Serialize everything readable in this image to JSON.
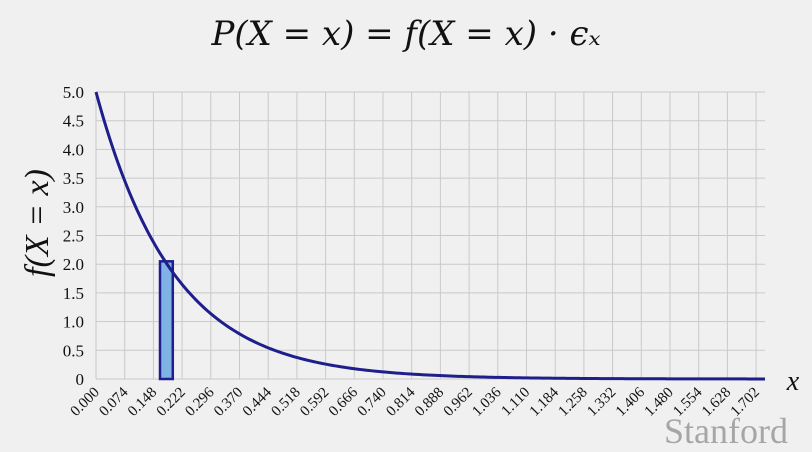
{
  "title": "P(X = x) = f(X = x) · ϵₓ",
  "watermark": "Stanford",
  "chart_data": {
    "type": "line",
    "title": "P(X = x) = f(X = x) · ϵₓ",
    "xlabel": "x",
    "ylabel": "f(X = x)",
    "xlim": [
      0,
      1.725
    ],
    "ylim": [
      0,
      5.0
    ],
    "grid": true,
    "function": "5·e^(−5x)",
    "x_ticks": [
      "0.000",
      "0.074",
      "0.148",
      "0.222",
      "0.296",
      "0.370",
      "0.444",
      "0.518",
      "0.592",
      "0.666",
      "0.740",
      "0.814",
      "0.888",
      "0.962",
      "1.036",
      "1.110",
      "1.184",
      "1.258",
      "1.332",
      "1.406",
      "1.480",
      "1.554",
      "1.628",
      "1.702"
    ],
    "y_ticks": [
      "0",
      "0.5",
      "1.0",
      "1.5",
      "2.0",
      "2.5",
      "3.0",
      "3.5",
      "4.0",
      "4.5",
      "5.0"
    ],
    "series": [
      {
        "x": [
          0.0,
          0.074,
          0.148,
          0.222,
          0.296,
          0.37,
          0.444,
          0.518,
          0.592,
          0.666,
          0.74,
          0.814,
          0.888,
          0.962,
          1.036,
          1.11,
          1.184,
          1.258,
          1.332,
          1.406,
          1.48,
          1.554,
          1.628,
          1.702
        ],
        "values": [
          5.0,
          3.45,
          2.38,
          1.65,
          1.14,
          0.79,
          0.54,
          0.38,
          0.26,
          0.18,
          0.12,
          0.085,
          0.059,
          0.041,
          0.028,
          0.019,
          0.013,
          0.009,
          0.006,
          0.004,
          0.003,
          0.002,
          0.0015,
          0.001
        ],
        "color": "#1e1e8c"
      }
    ],
    "highlight_bar": {
      "x_start": 0.165,
      "x_end": 0.198,
      "height": 2.05,
      "fill": "#7fb2e5",
      "stroke": "#1e1e8c"
    }
  }
}
